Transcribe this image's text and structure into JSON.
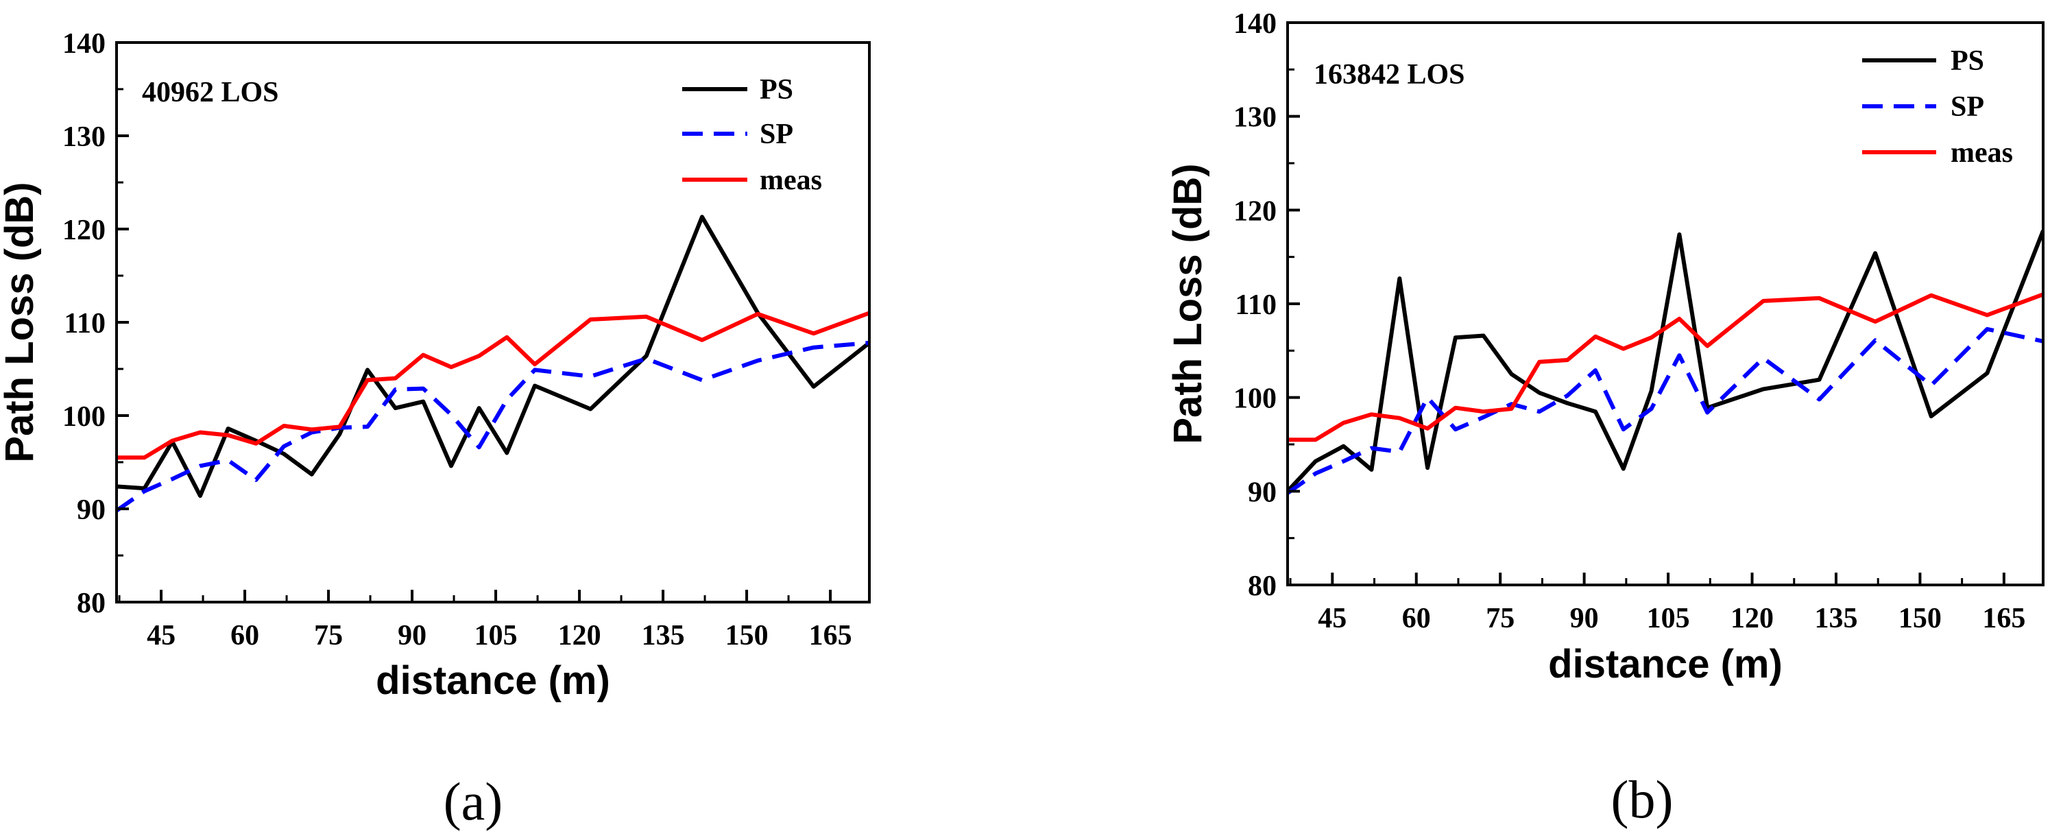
{
  "chart_data": [
    {
      "type": "line",
      "panel_label": "(a)",
      "annotation": "40962  LOS",
      "xlabel": "distance (m)",
      "ylabel": "Path Loss (dB)",
      "xlim": [
        37,
        172
      ],
      "ylim": [
        80,
        140
      ],
      "xticks": [
        45,
        60,
        75,
        90,
        105,
        120,
        135,
        150,
        165
      ],
      "yticks": [
        80,
        90,
        100,
        110,
        120,
        130,
        140
      ],
      "x": [
        37,
        42,
        47,
        52,
        57,
        62,
        67,
        72,
        77,
        82,
        87,
        92,
        97,
        102,
        107,
        112,
        122,
        132,
        142,
        152,
        162,
        172
      ],
      "series": [
        {
          "name": "PS",
          "color": "#000000",
          "dash": "solid",
          "values": [
            92.4,
            92.2,
            97.2,
            91.4,
            98.6,
            97.3,
            95.9,
            93.7,
            98.0,
            104.9,
            100.8,
            101.5,
            94.6,
            100.8,
            96.0,
            103.2,
            100.7,
            106.4,
            121.3,
            111.0,
            103.1,
            107.8
          ]
        },
        {
          "name": "SP",
          "color": "#0000ff",
          "dash": "dashed",
          "values": [
            89.8,
            91.9,
            93.2,
            94.6,
            95.2,
            93.1,
            96.7,
            98.2,
            98.7,
            98.8,
            102.8,
            102.9,
            100.1,
            96.6,
            101.7,
            104.9,
            104.2,
            106.1,
            103.8,
            105.9,
            107.3,
            107.8
          ]
        },
        {
          "name": "meas",
          "color": "#ff0000",
          "dash": "solid",
          "values": [
            95.5,
            95.5,
            97.3,
            98.2,
            97.9,
            97.0,
            98.9,
            98.5,
            98.8,
            103.8,
            104.0,
            106.5,
            105.2,
            106.4,
            108.4,
            105.5,
            110.3,
            110.6,
            108.1,
            110.9,
            108.8,
            111.0
          ]
        }
      ]
    },
    {
      "type": "line",
      "panel_label": "(b)",
      "annotation": "163842  LOS",
      "xlabel": "distance (m)",
      "ylabel": "Path Loss (dB)",
      "xlim": [
        37,
        172
      ],
      "ylim": [
        80,
        140
      ],
      "xticks": [
        45,
        60,
        75,
        90,
        105,
        120,
        135,
        150,
        165
      ],
      "yticks": [
        80,
        90,
        100,
        110,
        120,
        130,
        140
      ],
      "x": [
        37,
        42,
        47,
        52,
        57,
        62,
        67,
        72,
        77,
        82,
        87,
        92,
        97,
        102,
        107,
        112,
        122,
        132,
        142,
        152,
        162,
        172
      ],
      "series": [
        {
          "name": "PS",
          "color": "#000000",
          "dash": "solid",
          "values": [
            90.0,
            93.2,
            94.8,
            92.3,
            112.7,
            92.5,
            106.4,
            106.6,
            102.5,
            100.5,
            99.4,
            98.5,
            92.4,
            100.7,
            117.4,
            98.9,
            100.9,
            101.9,
            115.4,
            98.0,
            102.6,
            117.8
          ]
        },
        {
          "name": "SP",
          "color": "#0000ff",
          "dash": "dashed",
          "values": [
            89.8,
            91.9,
            93.2,
            94.6,
            94.2,
            100.0,
            96.6,
            97.9,
            99.3,
            98.5,
            100.2,
            102.9,
            96.6,
            98.8,
            104.5,
            98.4,
            104.2,
            99.8,
            106.1,
            101.3,
            107.3,
            106.0
          ]
        },
        {
          "name": "meas",
          "color": "#ff0000",
          "dash": "solid",
          "values": [
            95.5,
            95.5,
            97.3,
            98.2,
            97.8,
            96.7,
            98.9,
            98.5,
            98.8,
            103.8,
            104.0,
            106.5,
            105.2,
            106.4,
            108.4,
            105.5,
            110.3,
            110.6,
            108.1,
            110.9,
            108.8,
            111.0
          ]
        }
      ]
    }
  ]
}
